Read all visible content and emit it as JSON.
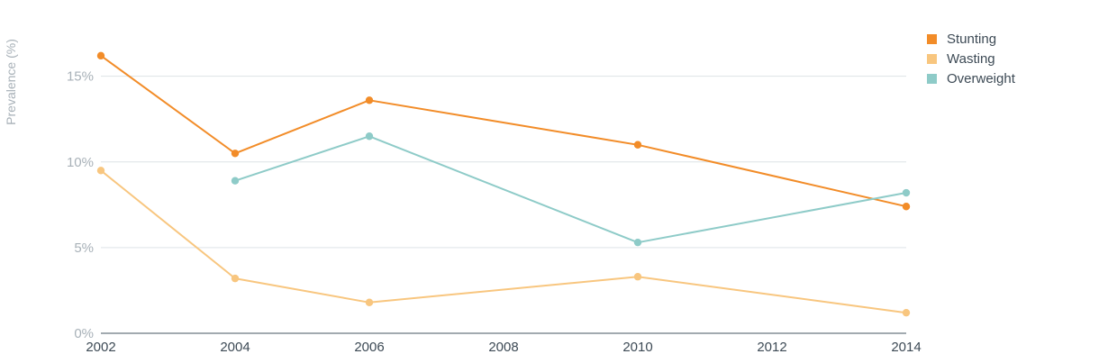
{
  "chart_data": {
    "type": "line",
    "title": "",
    "xlabel": "",
    "ylabel": "Prevalence (%)",
    "x": [
      2002,
      2004,
      2006,
      2010,
      2014
    ],
    "x_ticks": [
      "2002",
      "2004",
      "2006",
      "2008",
      "2010",
      "2012",
      "2014"
    ],
    "xlim": [
      2002,
      2014
    ],
    "ylim": [
      0,
      18.4
    ],
    "y_ticks": [
      "0%",
      "5%",
      "10%",
      "15%"
    ],
    "grid": "horizontal",
    "legend_position": "top-right",
    "series": [
      {
        "name": "Stunting",
        "color": "#f28c28",
        "values": [
          16.2,
          10.5,
          13.6,
          11.0,
          7.4
        ]
      },
      {
        "name": "Wasting",
        "color": "#f8c67f",
        "values": [
          9.5,
          3.2,
          1.8,
          3.3,
          1.2
        ]
      },
      {
        "name": "Overweight",
        "color": "#8ecbc8",
        "values": [
          null,
          8.9,
          11.5,
          5.3,
          8.2
        ]
      }
    ]
  }
}
